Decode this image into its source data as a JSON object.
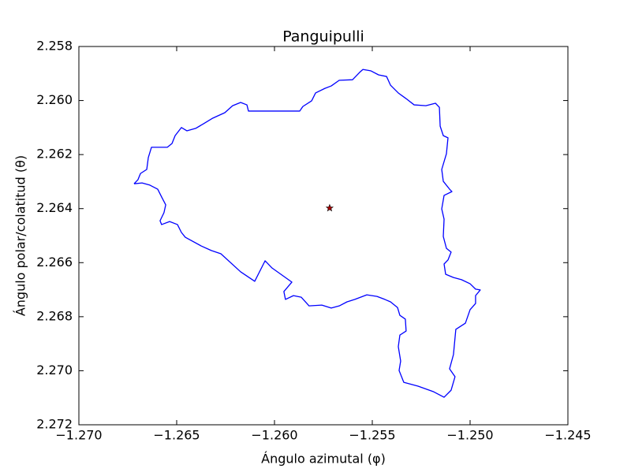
{
  "chart_data": {
    "type": "line",
    "title": "Panguipulli",
    "xlabel": "Ángulo azimutal (φ)",
    "ylabel": "Ángulo polar/colatitud (θ)",
    "xlim": [
      -1.27,
      -1.245
    ],
    "ylim": [
      2.272,
      2.258
    ],
    "xticks": [
      {
        "value": -1.27,
        "label": "−1.270"
      },
      {
        "value": -1.265,
        "label": "−1.265"
      },
      {
        "value": -1.26,
        "label": "−1.260"
      },
      {
        "value": -1.255,
        "label": "−1.255"
      },
      {
        "value": -1.25,
        "label": "−1.250"
      },
      {
        "value": -1.245,
        "label": "−1.245"
      }
    ],
    "yticks": [
      2.258,
      {
        "value": 2.26,
        "label": "2.260"
      },
      2.262,
      2.264,
      2.266,
      2.268,
      {
        "value": 2.27,
        "label": "2.270"
      },
      2.272
    ],
    "grid": false,
    "series": [
      {
        "type": "line",
        "color": "#0000ff",
        "x": [
          -1.26718,
          -1.26698,
          -1.26685,
          -1.26653,
          -1.26645,
          -1.26629,
          -1.26597,
          -1.26548,
          -1.26524,
          -1.26508,
          -1.26476,
          -1.26448,
          -1.26403,
          -1.26363,
          -1.26315,
          -1.26254,
          -1.26214,
          -1.26173,
          -1.26141,
          -1.26133,
          -1.25871,
          -1.25855,
          -1.2581,
          -1.2579,
          -1.25742,
          -1.2571,
          -1.25669,
          -1.25601,
          -1.25565,
          -1.25548,
          -1.25508,
          -1.25468,
          -1.25427,
          -1.25407,
          -1.25367,
          -1.25327,
          -1.25286,
          -1.25226,
          -1.25177,
          -1.25157,
          -1.25153,
          -1.25137,
          -1.25113,
          -1.25121,
          -1.25145,
          -1.25137,
          -1.25105,
          -1.25093,
          -1.25133,
          -1.25145,
          -1.25133,
          -1.25137,
          -1.25121,
          -1.25097,
          -1.25113,
          -1.25133,
          -1.25125,
          -1.25085,
          -1.25044,
          -1.25,
          -1.24972,
          -1.24948,
          -1.24972,
          -1.24972,
          -1.25,
          -1.25024,
          -1.25073,
          -1.25085,
          -1.25105,
          -1.25077,
          -1.25097,
          -1.25133,
          -1.25186,
          -1.25266,
          -1.25339,
          -1.25363,
          -1.25355,
          -1.25367,
          -1.25359,
          -1.25327,
          -1.25331,
          -1.25359,
          -1.25371,
          -1.25407,
          -1.25436,
          -1.25476,
          -1.25528,
          -1.25589,
          -1.25629,
          -1.25669,
          -1.2571,
          -1.25758,
          -1.25823,
          -1.25863,
          -1.25903,
          -1.25944,
          -1.25952,
          -1.25911,
          -1.26012,
          -1.26048,
          -1.26101,
          -1.26173,
          -1.26274,
          -1.26323,
          -1.26375,
          -1.26456,
          -1.26476,
          -1.26496,
          -1.26536,
          -1.26577,
          -1.26585,
          -1.26565,
          -1.26556,
          -1.26577,
          -1.26597,
          -1.26637,
          -1.26677,
          -1.26718
        ],
        "values": [
          2.26308,
          2.26293,
          2.2627,
          2.26255,
          2.26211,
          2.26173,
          2.26173,
          2.26173,
          2.26159,
          2.2613,
          2.261,
          2.26112,
          2.26103,
          2.26086,
          2.26065,
          2.26045,
          2.26019,
          2.26007,
          2.26016,
          2.26039,
          2.26039,
          2.26022,
          2.26001,
          2.25972,
          2.25955,
          2.25946,
          2.25925,
          2.25923,
          2.25896,
          2.25885,
          2.2589,
          2.25905,
          2.25911,
          2.25943,
          2.25972,
          2.25993,
          2.26016,
          2.26019,
          2.2601,
          2.26025,
          2.26095,
          2.2613,
          2.26138,
          2.26197,
          2.26255,
          2.26299,
          2.26328,
          2.26337,
          2.26351,
          2.26401,
          2.26439,
          2.26503,
          2.26547,
          2.26561,
          2.2659,
          2.26605,
          2.26643,
          2.26655,
          2.26663,
          2.26678,
          2.26698,
          2.26701,
          2.26722,
          2.26751,
          2.26774,
          2.26824,
          2.26847,
          2.2694,
          2.26993,
          2.27022,
          2.27072,
          2.27098,
          2.27078,
          2.27057,
          2.27043,
          2.26999,
          2.26964,
          2.26911,
          2.26868,
          2.26853,
          2.26809,
          2.26795,
          2.26766,
          2.26745,
          2.26736,
          2.26725,
          2.26719,
          2.26736,
          2.26745,
          2.2676,
          2.26768,
          2.26757,
          2.2676,
          2.26728,
          2.26722,
          2.26736,
          2.26707,
          2.26672,
          2.2662,
          2.26593,
          2.26669,
          2.26634,
          2.26567,
          2.26555,
          2.26538,
          2.26506,
          2.26488,
          2.26459,
          2.26448,
          2.26459,
          2.26445,
          2.26415,
          2.26386,
          2.26357,
          2.26328,
          2.26313,
          2.26305,
          2.26308
        ]
      },
      {
        "type": "scatter",
        "marker": "star",
        "color": "#aa0000",
        "x": [
          -1.25718
        ],
        "values": [
          2.26398
        ]
      }
    ]
  }
}
